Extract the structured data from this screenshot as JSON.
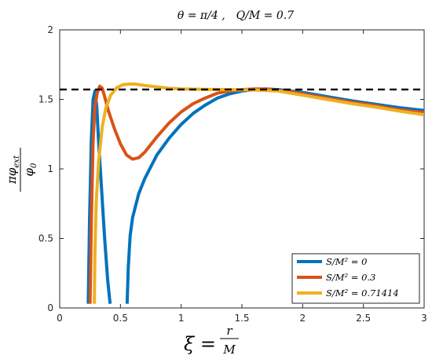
{
  "chart_data": {
    "type": "line",
    "title": "θ = π/4 ,   Q/M = 0.7",
    "xlabel": "ξ = r/M",
    "ylabel": "π φ_ext / φ_0",
    "xlim": [
      0,
      3
    ],
    "ylim": [
      0,
      2
    ],
    "x_ticks": [
      "0",
      "0.5",
      "1",
      "1.5",
      "2",
      "2.5",
      "3"
    ],
    "y_ticks": [
      "0",
      "0.5",
      "1",
      "1.5",
      "2"
    ],
    "grid": false,
    "legend_position": "bottom-right",
    "reference_line": {
      "y": 1.5708,
      "style": "dashed",
      "color": "#000000"
    },
    "series": [
      {
        "name": "S/M² = 0",
        "color": "#0072BD",
        "segments": [
          [
            [
              0.235,
              0.03
            ],
            [
              0.245,
              0.6
            ],
            [
              0.26,
              1.2
            ],
            [
              0.275,
              1.5
            ],
            [
              0.29,
              1.56
            ],
            [
              0.305,
              1.45
            ],
            [
              0.32,
              1.2
            ],
            [
              0.345,
              0.85
            ],
            [
              0.37,
              0.5
            ],
            [
              0.395,
              0.2
            ],
            [
              0.415,
              0.03
            ]
          ],
          [
            [
              0.555,
              0.03
            ],
            [
              0.565,
              0.3
            ],
            [
              0.58,
              0.52
            ],
            [
              0.6,
              0.65
            ],
            [
              0.65,
              0.82
            ],
            [
              0.7,
              0.93
            ],
            [
              0.8,
              1.1
            ],
            [
              0.9,
              1.22
            ],
            [
              1.0,
              1.32
            ],
            [
              1.1,
              1.4
            ],
            [
              1.2,
              1.46
            ],
            [
              1.3,
              1.51
            ],
            [
              1.4,
              1.54
            ],
            [
              1.5,
              1.56
            ],
            [
              1.6,
              1.57
            ],
            [
              1.7,
              1.575
            ],
            [
              1.8,
              1.57
            ],
            [
              1.9,
              1.56
            ],
            [
              2.0,
              1.55
            ],
            [
              2.2,
              1.52
            ],
            [
              2.4,
              1.49
            ],
            [
              2.6,
              1.465
            ],
            [
              2.8,
              1.44
            ],
            [
              3.0,
              1.42
            ]
          ]
        ]
      },
      {
        "name": "S/M² = 0.3",
        "color": "#D95319",
        "segments": [
          [
            [
              0.25,
              0.03
            ],
            [
              0.26,
              0.6
            ],
            [
              0.275,
              1.2
            ],
            [
              0.29,
              1.45
            ],
            [
              0.31,
              1.55
            ],
            [
              0.33,
              1.595
            ],
            [
              0.35,
              1.58
            ],
            [
              0.37,
              1.52
            ],
            [
              0.4,
              1.42
            ],
            [
              0.45,
              1.29
            ],
            [
              0.5,
              1.18
            ],
            [
              0.55,
              1.1
            ],
            [
              0.6,
              1.07
            ],
            [
              0.65,
              1.08
            ],
            [
              0.7,
              1.12
            ],
            [
              0.8,
              1.23
            ],
            [
              0.9,
              1.33
            ],
            [
              1.0,
              1.41
            ],
            [
              1.1,
              1.47
            ],
            [
              1.2,
              1.51
            ],
            [
              1.3,
              1.545
            ],
            [
              1.4,
              1.56
            ],
            [
              1.5,
              1.57
            ],
            [
              1.6,
              1.575
            ],
            [
              1.7,
              1.575
            ],
            [
              1.8,
              1.565
            ],
            [
              1.9,
              1.555
            ],
            [
              2.0,
              1.54
            ],
            [
              2.2,
              1.51
            ],
            [
              2.4,
              1.48
            ],
            [
              2.6,
              1.455
            ],
            [
              2.8,
              1.425
            ],
            [
              3.0,
              1.405
            ]
          ]
        ]
      },
      {
        "name": "S/M² = 0.71414",
        "color": "#EDB120",
        "segments": [
          [
            [
              0.285,
              0.03
            ],
            [
              0.29,
              0.4
            ],
            [
              0.3,
              0.75
            ],
            [
              0.32,
              1.05
            ],
            [
              0.35,
              1.3
            ],
            [
              0.38,
              1.44
            ],
            [
              0.42,
              1.53
            ],
            [
              0.47,
              1.585
            ],
            [
              0.52,
              1.605
            ],
            [
              0.57,
              1.61
            ],
            [
              0.62,
              1.61
            ],
            [
              0.7,
              1.6
            ],
            [
              0.8,
              1.59
            ],
            [
              0.9,
              1.58
            ],
            [
              1.0,
              1.575
            ],
            [
              1.2,
              1.572
            ],
            [
              1.4,
              1.57
            ],
            [
              1.6,
              1.568
            ],
            [
              1.8,
              1.56
            ],
            [
              2.0,
              1.53
            ],
            [
              2.2,
              1.5
            ],
            [
              2.4,
              1.47
            ],
            [
              2.6,
              1.445
            ],
            [
              2.8,
              1.415
            ],
            [
              3.0,
              1.39
            ]
          ]
        ]
      }
    ]
  }
}
